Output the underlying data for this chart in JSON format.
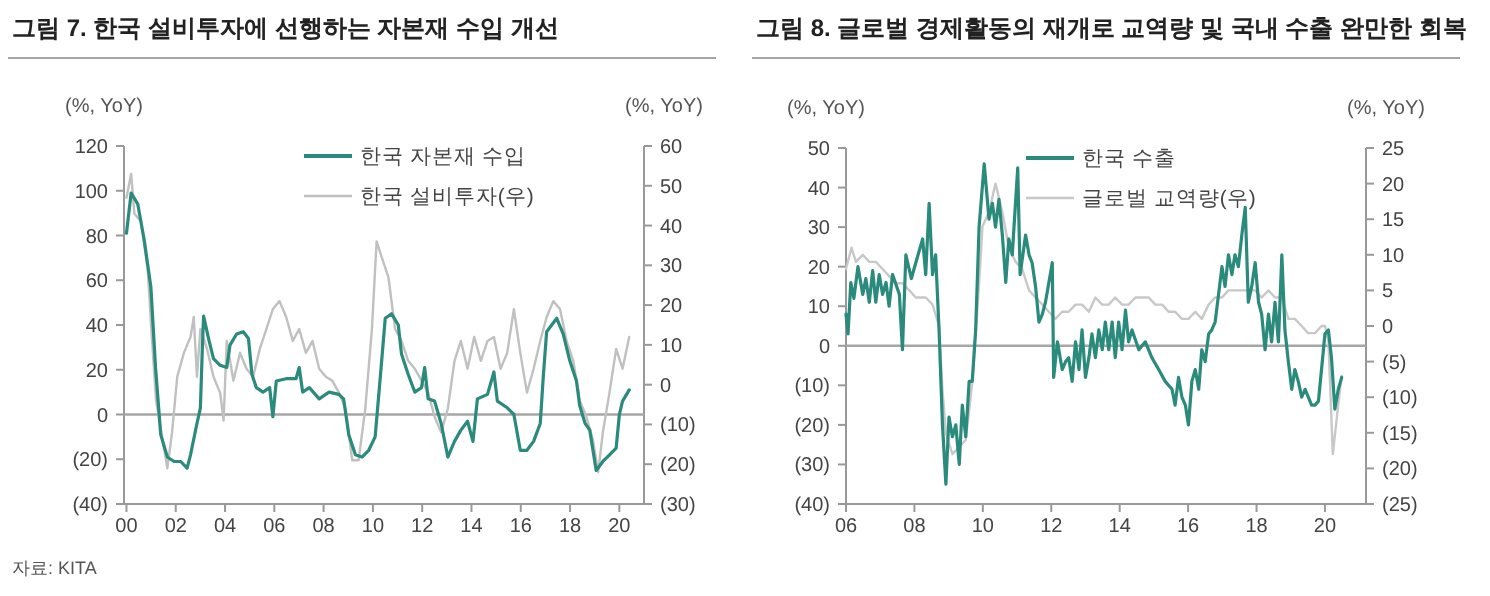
{
  "chart_data": [
    {
      "type": "line",
      "title": "그림 7. 한국 설비투자에 선행하는 자본재 수입 개선",
      "ylabel": "(%, YoY)",
      "y2label": "(%, YoY)",
      "legend": "top",
      "xlim": [
        1999.9,
        2021
      ],
      "xticks": [
        {
          "value": 2000,
          "label": "00"
        },
        {
          "value": 2002,
          "label": "02"
        },
        {
          "value": 2004,
          "label": "04"
        },
        {
          "value": 2006,
          "label": "06"
        },
        {
          "value": 2008,
          "label": "08"
        },
        {
          "value": 2010,
          "label": "10"
        },
        {
          "value": 2012,
          "label": "12"
        },
        {
          "value": 2014,
          "label": "14"
        },
        {
          "value": 2016,
          "label": "16"
        },
        {
          "value": 2018,
          "label": "18"
        },
        {
          "value": 2020,
          "label": "20"
        }
      ],
      "ylim": [
        -40,
        120
      ],
      "yticks": [
        {
          "value": -40,
          "label": "(40)"
        },
        {
          "value": -20,
          "label": "(20)"
        },
        0,
        20,
        40,
        60,
        80,
        100,
        120
      ],
      "y2lim": [
        -30,
        60
      ],
      "y2ticks": [
        {
          "value": -30,
          "label": "(30)"
        },
        {
          "value": -20,
          "label": "(20)"
        },
        {
          "value": -10,
          "label": "(10)"
        },
        0,
        10,
        20,
        30,
        40,
        50,
        60
      ],
      "ref_lines": [
        {
          "axis": "y",
          "value": 0,
          "color": "#a6a6a6"
        }
      ],
      "annotations": [
        "자료: KITA"
      ],
      "series": [
        {
          "name": "한국 설비투자(우)",
          "color": "#c0c0c0",
          "axis": "y2",
          "x": [
            2000.0,
            2000.19,
            2000.32,
            2000.59,
            2000.86,
            2001.04,
            2001.2,
            2001.39,
            2001.66,
            2001.85,
            2002.06,
            2002.33,
            2002.6,
            2002.73,
            2002.86,
            2003.0,
            2003.27,
            2003.53,
            2003.8,
            2003.94,
            2004.07,
            2004.34,
            2004.61,
            2004.87,
            2005.14,
            2005.41,
            2005.68,
            2005.94,
            2006.21,
            2006.48,
            2006.75,
            2007.01,
            2007.28,
            2007.55,
            2007.82,
            2008.09,
            2008.35,
            2008.62,
            2008.89,
            2009.16,
            2009.42,
            2009.69,
            2009.96,
            2010.15,
            2010.36,
            2010.63,
            2010.9,
            2011.16,
            2011.43,
            2011.7,
            2011.97,
            2012.24,
            2012.5,
            2012.77,
            2013.04,
            2013.31,
            2013.57,
            2013.84,
            2014.11,
            2014.38,
            2014.65,
            2014.91,
            2015.18,
            2015.45,
            2015.72,
            2015.98,
            2016.25,
            2016.52,
            2016.79,
            2017.05,
            2017.32,
            2017.59,
            2017.86,
            2018.13,
            2018.39,
            2018.66,
            2018.93,
            2019.14,
            2019.33,
            2019.6,
            2019.87,
            2020.13,
            2020.4
          ],
          "values": [
            47,
            53,
            43,
            41,
            29,
            11,
            -4,
            -11,
            -21,
            -12,
            2,
            8,
            12,
            17,
            2,
            14,
            9,
            2,
            -2,
            -9,
            11,
            1,
            8,
            4,
            2,
            9,
            14,
            19,
            21,
            17,
            11,
            14,
            8,
            11,
            4,
            2,
            1,
            -2,
            -6,
            -19,
            -19,
            -6,
            14,
            36,
            32,
            27,
            14,
            11,
            6,
            4,
            1,
            -2,
            -8,
            -12,
            -6,
            6,
            11,
            4,
            12,
            6,
            11,
            12,
            4,
            8,
            19,
            8,
            -2,
            4,
            11,
            17,
            21,
            19,
            11,
            6,
            -4,
            -8,
            -14,
            -22,
            -12,
            -2,
            9,
            4,
            12
          ]
        },
        {
          "name": "한국 자본재 수입",
          "color": "#2a8a7c",
          "x": [
            2000.0,
            2000.19,
            2000.46,
            2000.72,
            2000.99,
            2001.18,
            2001.39,
            2001.66,
            2001.93,
            2002.2,
            2002.46,
            2002.6,
            2002.86,
            2003.0,
            2003.08,
            2003.13,
            2003.35,
            2003.53,
            2003.8,
            2004.07,
            2004.2,
            2004.47,
            2004.74,
            2004.95,
            2005.09,
            2005.27,
            2005.54,
            2005.81,
            2005.94,
            2006.08,
            2006.48,
            2006.88,
            2007.01,
            2007.15,
            2007.42,
            2007.82,
            2008.22,
            2008.62,
            2008.81,
            2009.02,
            2009.29,
            2009.56,
            2009.83,
            2010.09,
            2010.31,
            2010.5,
            2010.76,
            2011.03,
            2011.16,
            2011.43,
            2011.7,
            2011.97,
            2012.1,
            2012.24,
            2012.5,
            2012.77,
            2013.04,
            2013.31,
            2013.57,
            2013.84,
            2014.06,
            2014.24,
            2014.65,
            2014.91,
            2015.05,
            2015.45,
            2015.72,
            2015.98,
            2016.25,
            2016.52,
            2016.79,
            2016.92,
            2017.05,
            2017.46,
            2017.72,
            2017.99,
            2018.26,
            2018.39,
            2018.61,
            2018.8,
            2019.06,
            2019.33,
            2019.6,
            2019.87,
            2020.0,
            2020.13,
            2020.4
          ],
          "values": [
            81,
            99,
            94,
            78,
            57,
            21,
            -9,
            -19,
            -21,
            -21,
            -24,
            -18,
            -4,
            3,
            30,
            44,
            33,
            25,
            22,
            21,
            31,
            36,
            37,
            34,
            18,
            12,
            10,
            12,
            -1,
            15,
            16,
            16,
            21,
            10,
            12,
            7,
            10,
            9,
            7,
            -9,
            -18,
            -19,
            -16,
            -10,
            18,
            43,
            45,
            40,
            27,
            18,
            10,
            12,
            21,
            7,
            6,
            -4,
            -19,
            -12,
            -7,
            -3,
            -12,
            7,
            9,
            19,
            6,
            3,
            0,
            -16,
            -16,
            -12,
            -4,
            18,
            37,
            43,
            36,
            24,
            15,
            4,
            -4,
            -7,
            -25,
            -21,
            -18,
            -15,
            0,
            6,
            11
          ]
        }
      ]
    },
    {
      "type": "line",
      "title": "그림 8. 글로벌 경제활동의 재개로 교역량 및 국내 수출 완만한 회복",
      "ylabel": "(%, YoY)",
      "y2label": "(%, YoY)",
      "legend": "top",
      "xlim": [
        2006,
        2021.2
      ],
      "xticks": [
        {
          "value": 2006,
          "label": "06"
        },
        {
          "value": 2008,
          "label": "08"
        },
        {
          "value": 2010,
          "label": "10"
        },
        {
          "value": 2012,
          "label": "12"
        },
        {
          "value": 2014,
          "label": "14"
        },
        {
          "value": 2016,
          "label": "16"
        },
        {
          "value": 2018,
          "label": "18"
        },
        {
          "value": 2020,
          "label": "20"
        }
      ],
      "ylim": [
        -40,
        50
      ],
      "yticks": [
        {
          "value": -40,
          "label": "(40)"
        },
        {
          "value": -30,
          "label": "(30)"
        },
        {
          "value": -20,
          "label": "(20)"
        },
        {
          "value": -10,
          "label": "(10)"
        },
        0,
        10,
        20,
        30,
        40,
        50
      ],
      "y2lim": [
        -25,
        25
      ],
      "y2ticks": [
        {
          "value": -25,
          "label": "(25)"
        },
        {
          "value": -20,
          "label": "(20)"
        },
        {
          "value": -15,
          "label": "(15)"
        },
        {
          "value": -10,
          "label": "(10)"
        },
        {
          "value": -5,
          "label": "(5)"
        },
        0,
        5,
        10,
        15,
        20,
        25
      ],
      "ref_lines": [
        {
          "axis": "y",
          "value": 0,
          "color": "#a6a6a6"
        }
      ],
      "series": [
        {
          "name": "글로벌 교역량(우)",
          "color": "#c8c8c8",
          "axis": "y2",
          "x": [
            2006.0,
            2006.16,
            2006.29,
            2006.49,
            2006.68,
            2006.87,
            2007.07,
            2007.26,
            2007.46,
            2007.65,
            2007.85,
            2008.04,
            2008.33,
            2008.53,
            2008.72,
            2008.82,
            2008.92,
            2009.11,
            2009.31,
            2009.5,
            2009.69,
            2009.89,
            2009.99,
            2010.18,
            2010.37,
            2010.57,
            2010.76,
            2010.96,
            2011.15,
            2011.35,
            2011.54,
            2011.74,
            2011.93,
            2012.12,
            2012.32,
            2012.51,
            2012.71,
            2012.9,
            2013.1,
            2013.29,
            2013.49,
            2013.68,
            2013.87,
            2014.07,
            2014.26,
            2014.46,
            2014.65,
            2014.85,
            2015.04,
            2015.24,
            2015.43,
            2015.62,
            2015.82,
            2016.01,
            2016.21,
            2016.4,
            2016.6,
            2016.79,
            2016.99,
            2017.18,
            2017.37,
            2017.57,
            2017.76,
            2017.96,
            2018.15,
            2018.35,
            2018.54,
            2018.74,
            2018.93,
            2019.12,
            2019.32,
            2019.51,
            2019.71,
            2019.9,
            2020.0,
            2020.1,
            2020.23,
            2020.39,
            2020.49
          ],
          "values": [
            8,
            11,
            9,
            10,
            9,
            9,
            8,
            7,
            6,
            6,
            5,
            4,
            4,
            3,
            0,
            -9,
            -15,
            -18,
            -17,
            -16,
            -8,
            6,
            14,
            16,
            20,
            16,
            11,
            9,
            8,
            5,
            4,
            3,
            2,
            1,
            2,
            2,
            3,
            3,
            2,
            4,
            3,
            3,
            4,
            3,
            3,
            4,
            4,
            4,
            3,
            3,
            2,
            2,
            1,
            1,
            2,
            1,
            3,
            4,
            4,
            5,
            5,
            5,
            5,
            5,
            4,
            5,
            4,
            4,
            1,
            1,
            0,
            -1,
            -1,
            0,
            0,
            -2,
            -18,
            -11,
            -7
          ]
        },
        {
          "name": "한국 수출",
          "color": "#2a8a7c",
          "x": [
            2006.0,
            2006.06,
            2006.14,
            2006.23,
            2006.35,
            2006.49,
            2006.58,
            2006.68,
            2006.78,
            2006.87,
            2006.97,
            2007.07,
            2007.17,
            2007.26,
            2007.36,
            2007.56,
            2007.65,
            2007.75,
            2007.91,
            2008.04,
            2008.24,
            2008.33,
            2008.43,
            2008.53,
            2008.62,
            2008.72,
            2008.82,
            2008.92,
            2009.01,
            2009.11,
            2009.21,
            2009.31,
            2009.4,
            2009.5,
            2009.6,
            2009.69,
            2009.79,
            2009.89,
            2010.04,
            2010.18,
            2010.28,
            2010.37,
            2010.47,
            2010.57,
            2010.67,
            2010.76,
            2010.86,
            2011.02,
            2011.09,
            2011.25,
            2011.35,
            2011.44,
            2011.54,
            2011.64,
            2011.74,
            2011.83,
            2012.03,
            2012.07,
            2012.18,
            2012.32,
            2012.42,
            2012.51,
            2012.61,
            2012.71,
            2012.81,
            2012.9,
            2013.0,
            2013.1,
            2013.19,
            2013.29,
            2013.39,
            2013.49,
            2013.58,
            2013.68,
            2013.78,
            2013.87,
            2013.97,
            2014.07,
            2014.17,
            2014.26,
            2014.36,
            2014.56,
            2014.75,
            2014.94,
            2015.14,
            2015.33,
            2015.53,
            2015.62,
            2015.72,
            2015.82,
            2015.92,
            2016.01,
            2016.11,
            2016.21,
            2016.31,
            2016.4,
            2016.5,
            2016.6,
            2016.69,
            2016.79,
            2016.89,
            2016.99,
            2017.08,
            2017.18,
            2017.28,
            2017.37,
            2017.47,
            2017.57,
            2017.67,
            2017.76,
            2017.86,
            2017.96,
            2018.06,
            2018.15,
            2018.25,
            2018.35,
            2018.44,
            2018.54,
            2018.64,
            2018.74,
            2018.83,
            2018.93,
            2019.03,
            2019.12,
            2019.22,
            2019.32,
            2019.42,
            2019.61,
            2019.71,
            2019.81,
            2019.9,
            2020.0,
            2020.1,
            2020.19,
            2020.29,
            2020.39,
            2020.49
          ],
          "values": [
            8,
            3,
            16,
            12,
            20,
            13,
            17,
            11,
            19,
            11,
            18,
            13,
            16,
            10,
            18,
            13,
            -1,
            23,
            17,
            21,
            27,
            18,
            36,
            18,
            23,
            4,
            -20,
            -35,
            -18,
            -23,
            -20,
            -30,
            -15,
            -23,
            -9,
            -9,
            4,
            30,
            46,
            32,
            36,
            30,
            37,
            28,
            16,
            27,
            23,
            45,
            18,
            28,
            23,
            21,
            15,
            6,
            8,
            11,
            21,
            -8,
            1,
            -6,
            -4,
            -3,
            -9,
            1,
            -6,
            4,
            -8,
            -3,
            3,
            -3,
            4,
            -1,
            6,
            -1,
            6,
            -3,
            6,
            -1,
            9,
            1,
            4,
            -1,
            1,
            -3,
            -6,
            -9,
            -11,
            -15,
            -8,
            -13,
            -15,
            -20,
            -9,
            -6,
            -11,
            -1,
            -4,
            3,
            4,
            6,
            13,
            20,
            15,
            23,
            18,
            23,
            20,
            28,
            35,
            11,
            15,
            21,
            11,
            8,
            -1,
            8,
            1,
            11,
            1,
            23,
            4,
            -4,
            -11,
            -6,
            -9,
            -13,
            -11,
            -15,
            -15,
            -14,
            -6,
            3,
            4,
            -3,
            -16,
            -11,
            -8
          ]
        }
      ]
    }
  ]
}
